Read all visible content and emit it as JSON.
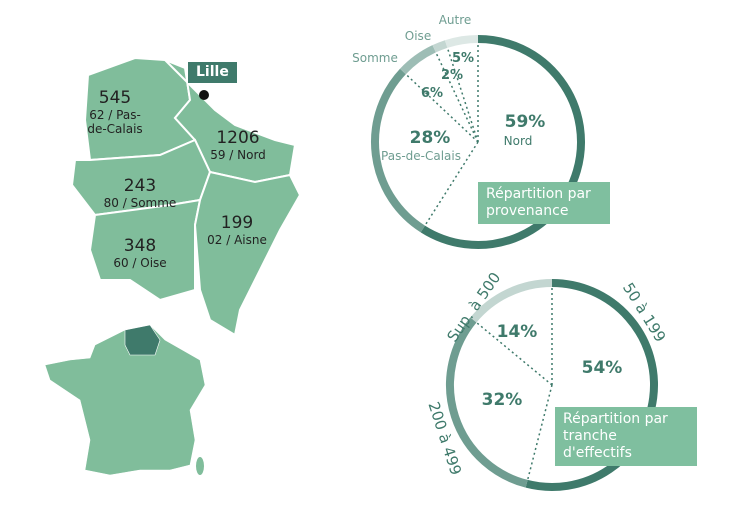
{
  "map": {
    "city": "Lille",
    "regions": [
      {
        "value": 545,
        "code": "62 / Pas-de-Calais"
      },
      {
        "value": 1206,
        "code": "59 / Nord"
      },
      {
        "value": 243,
        "code": "80 / Somme"
      },
      {
        "value": 199,
        "code": "02 / Aisne"
      },
      {
        "value": 348,
        "code": "60 / Oise"
      }
    ]
  },
  "chart_data": [
    {
      "type": "pie",
      "title": "Répartition par provenance",
      "categories": [
        "Nord",
        "Pas-de-Calais",
        "Somme",
        "Oise",
        "Autre"
      ],
      "values": [
        59,
        28,
        6,
        2,
        5
      ],
      "value_labels": [
        "59%",
        "28%",
        "6%",
        "2%",
        "5%"
      ],
      "colors": [
        "#3f7a6b",
        "#6f9d91",
        "#9dbdb5",
        "#c3d6d1",
        "#dde8e5"
      ]
    },
    {
      "type": "pie",
      "title": "Répartition par tranche d'effectifs",
      "categories": [
        "50 à 199",
        "200 à 499",
        "Sup. à 500"
      ],
      "values": [
        54,
        32,
        14
      ],
      "value_labels": [
        "54%",
        "32%",
        "14%"
      ],
      "colors": [
        "#3f7a6b",
        "#6f9d91",
        "#c3d6d1"
      ]
    }
  ]
}
